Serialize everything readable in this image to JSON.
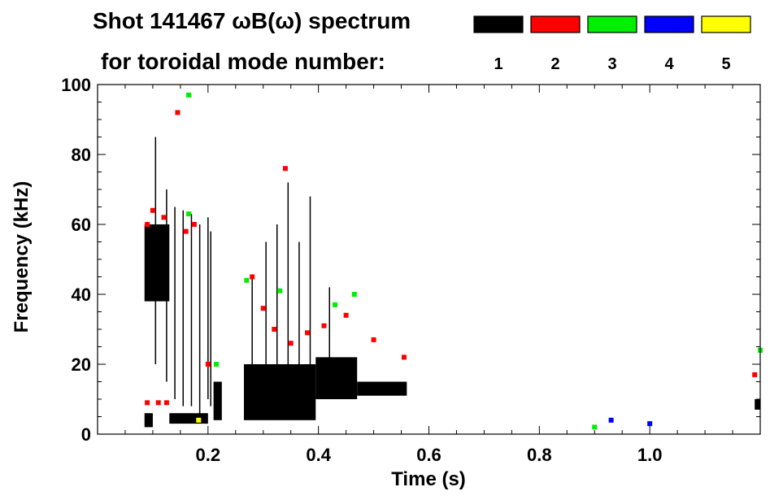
{
  "chart_data": {
    "type": "heatmap",
    "title_line1": "Shot 141467 ωB(ω) spectrum",
    "title_line2": "for toroidal mode number:",
    "xlabel": "Time (s)",
    "ylabel": "Frequency (kHz)",
    "xlim": [
      0.0,
      1.2
    ],
    "ylim": [
      0,
      100
    ],
    "x_ticks": [
      {
        "v": 0.2,
        "label": "0.2"
      },
      {
        "v": 0.4,
        "label": "0.4"
      },
      {
        "v": 0.6,
        "label": "0.6"
      },
      {
        "v": 0.8,
        "label": "0.8"
      },
      {
        "v": 1.0,
        "label": "1.0"
      }
    ],
    "y_ticks": [
      {
        "v": 0,
        "label": "0"
      },
      {
        "v": 20,
        "label": "20"
      },
      {
        "v": 40,
        "label": "40"
      },
      {
        "v": 60,
        "label": "60"
      },
      {
        "v": 80,
        "label": "80"
      },
      {
        "v": 100,
        "label": "100"
      }
    ],
    "legend_placement": "top-right",
    "legend": [
      {
        "mode": "1",
        "color": "#000000"
      },
      {
        "mode": "2",
        "color": "#ff0000"
      },
      {
        "mode": "3",
        "color": "#00ee00"
      },
      {
        "mode": "4",
        "color": "#0000ff"
      },
      {
        "mode": "5",
        "color": "#ffff00"
      }
    ],
    "series": [
      {
        "mode": "1",
        "color": "#000000",
        "regions": [
          {
            "t": [
              0.085,
              0.13
            ],
            "f": [
              38,
              60
            ]
          },
          {
            "t": [
              0.085,
              0.1
            ],
            "f": [
              2,
              6
            ]
          },
          {
            "t": [
              0.13,
              0.2
            ],
            "f": [
              3,
              6
            ]
          },
          {
            "t": [
              0.21,
              0.225
            ],
            "f": [
              4,
              15
            ]
          },
          {
            "t": [
              0.265,
              0.395
            ],
            "f": [
              4,
              20
            ]
          },
          {
            "t": [
              0.395,
              0.47
            ],
            "f": [
              10,
              22
            ]
          },
          {
            "t": [
              0.47,
              0.56
            ],
            "f": [
              11,
              15
            ]
          },
          {
            "t": [
              1.19,
              1.2
            ],
            "f": [
              7,
              10
            ]
          }
        ],
        "lines": [
          {
            "t": 0.105,
            "f": [
              20,
              85
            ]
          },
          {
            "t": 0.125,
            "f": [
              15,
              70
            ]
          },
          {
            "t": 0.14,
            "f": [
              10,
              65
            ]
          },
          {
            "t": 0.155,
            "f": [
              8,
              64
            ]
          },
          {
            "t": 0.17,
            "f": [
              8,
              63
            ]
          },
          {
            "t": 0.185,
            "f": [
              5,
              60
            ]
          },
          {
            "t": 0.2,
            "f": [
              10,
              62
            ]
          },
          {
            "t": 0.205,
            "f": [
              8,
              58
            ]
          },
          {
            "t": 0.28,
            "f": [
              5,
              45
            ]
          },
          {
            "t": 0.305,
            "f": [
              10,
              55
            ]
          },
          {
            "t": 0.325,
            "f": [
              8,
              60
            ]
          },
          {
            "t": 0.345,
            "f": [
              5,
              72
            ]
          },
          {
            "t": 0.365,
            "f": [
              8,
              55
            ]
          },
          {
            "t": 0.385,
            "f": [
              10,
              68
            ]
          },
          {
            "t": 0.42,
            "f": [
              15,
              42
            ]
          }
        ]
      },
      {
        "mode": "2",
        "color": "#ff0000",
        "points": [
          [
            0.09,
            60
          ],
          [
            0.1,
            64
          ],
          [
            0.12,
            62
          ],
          [
            0.16,
            58
          ],
          [
            0.175,
            60
          ],
          [
            0.28,
            45
          ],
          [
            0.3,
            36
          ],
          [
            0.32,
            30
          ],
          [
            0.35,
            26
          ],
          [
            0.38,
            29
          ],
          [
            0.41,
            31
          ],
          [
            0.45,
            34
          ],
          [
            0.5,
            27
          ],
          [
            0.555,
            22
          ],
          [
            0.09,
            9
          ],
          [
            0.11,
            9
          ],
          [
            0.125,
            9
          ],
          [
            0.2,
            20
          ],
          [
            0.34,
            76
          ],
          [
            0.145,
            92
          ],
          [
            1.19,
            17
          ]
        ]
      },
      {
        "mode": "3",
        "color": "#00ee00",
        "points": [
          [
            0.165,
            97
          ],
          [
            0.165,
            63
          ],
          [
            0.215,
            20
          ],
          [
            0.27,
            44
          ],
          [
            0.33,
            41
          ],
          [
            0.43,
            37
          ],
          [
            0.465,
            40
          ],
          [
            0.9,
            2
          ],
          [
            1.2,
            24
          ]
        ]
      },
      {
        "mode": "4",
        "color": "#0000ff",
        "points": [
          [
            0.93,
            4
          ],
          [
            1.0,
            3
          ]
        ]
      },
      {
        "mode": "5",
        "color": "#ffff00",
        "points": [
          [
            0.183,
            4
          ]
        ]
      }
    ]
  }
}
